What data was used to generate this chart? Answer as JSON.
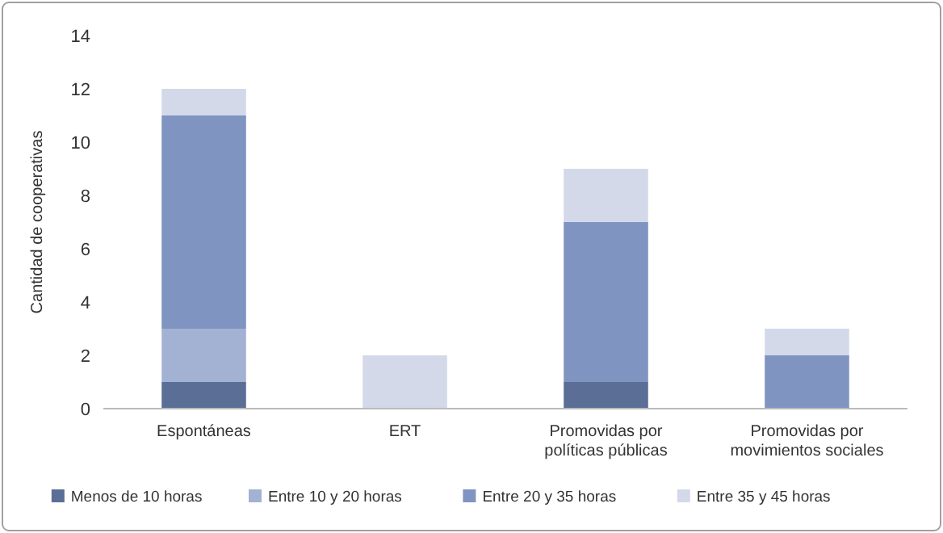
{
  "chart_data": {
    "type": "bar",
    "stacked": true,
    "ylabel": "Cantidad de cooperativas",
    "categories": [
      "Espontáneas",
      "ERT",
      "Promovidas por políticas públicas",
      "Promovidas por movimientos sociales"
    ],
    "series": [
      {
        "name": "Menos de 10 horas",
        "color": "#5a6e96",
        "values": [
          1,
          0,
          1,
          0
        ]
      },
      {
        "name": "Entre 10 y 20 horas",
        "color": "#a3b1d3",
        "values": [
          2,
          0,
          0,
          0
        ]
      },
      {
        "name": "Entre 20 y 35 horas",
        "color": "#8094c2",
        "values": [
          8,
          0,
          6,
          2
        ]
      },
      {
        "name": "Entre 35 y 45 horas",
        "color": "#d3d9e9",
        "values": [
          1,
          2,
          2,
          1
        ]
      }
    ],
    "ylim": [
      0,
      14
    ],
    "yticks": [
      0,
      2,
      4,
      6,
      8,
      10,
      12,
      14
    ],
    "grid": false,
    "legend": "bottom"
  }
}
